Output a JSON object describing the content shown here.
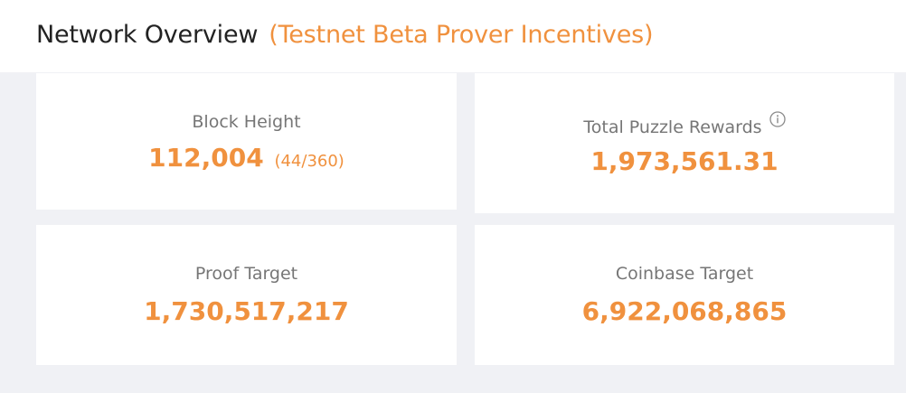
{
  "header": {
    "title": "Network Overview",
    "subtitle": "(Testnet Beta Prover Incentives)"
  },
  "colors": {
    "accent": "#f0913e",
    "title_text": "#222222",
    "label_text": "#767676",
    "grid_background": "#f0f1f5",
    "card_background": "#ffffff"
  },
  "stats": {
    "block_height": {
      "label": "Block Height",
      "value": "112,004",
      "sub": "(44/360)"
    },
    "total_puzzle_rewards": {
      "label": "Total Puzzle Rewards",
      "value": "1,973,561.31",
      "icon": "info-icon"
    },
    "proof_target": {
      "label": "Proof Target",
      "value": "1,730,517,217"
    },
    "coinbase_target": {
      "label": "Coinbase Target",
      "value": "6,922,068,865"
    }
  }
}
